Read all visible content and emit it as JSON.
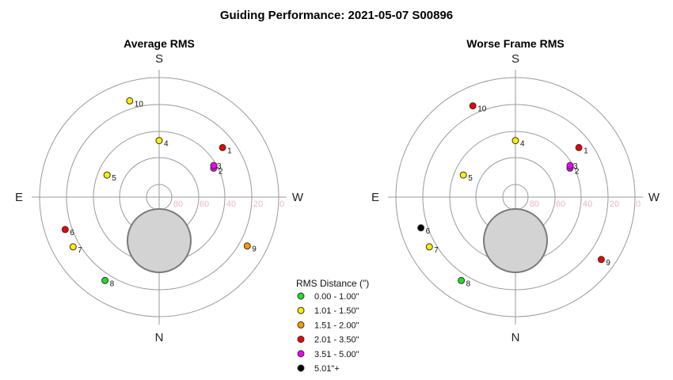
{
  "chart_data": {
    "type": "scatter",
    "title": "Guiding Performance: 2021-05-07  S00896",
    "coordinate_system": "polar (azimuth / altitude)",
    "directions": {
      "top": "S",
      "bottom": "N",
      "left": "E",
      "right": "W"
    },
    "ring_labels": [
      "80",
      "60",
      "40",
      "20",
      "0"
    ],
    "altitude_rings": [
      80,
      60,
      40,
      20,
      0
    ],
    "zenith_exclusion_altitude": 75,
    "legend": {
      "title": "RMS Distance (\")",
      "entries": [
        {
          "label": "0.00 - 1.00\"",
          "color": "#22dd22"
        },
        {
          "label": "1.01 - 1.50\"",
          "color": "#ffee00"
        },
        {
          "label": "1.51 - 2.00\"",
          "color": "#ff9900"
        },
        {
          "label": "2.01 - 3.50\"",
          "color": "#ee0000"
        },
        {
          "label": "3.51 - 5.00\"",
          "color": "#ee00ee"
        },
        {
          "label": "5.01\"+",
          "color": "#000000"
        }
      ]
    },
    "panels": [
      {
        "title": "Average RMS",
        "points": [
          {
            "label": "1",
            "az": 232,
            "alt": 49,
            "color": "#ee0000"
          },
          {
            "label": "2",
            "az": 242,
            "alt": 63,
            "color": "#ee00ee"
          },
          {
            "label": "3",
            "az": 240,
            "alt": 62,
            "color": "#ee00ee"
          },
          {
            "label": "4",
            "az": 180,
            "alt": 67,
            "color": "#ffee00"
          },
          {
            "label": "5",
            "az": 113,
            "alt": 67,
            "color": "#ffee00"
          },
          {
            "label": "6",
            "az": 71,
            "alt": 35,
            "color": "#ee0000"
          },
          {
            "label": "7",
            "az": 60,
            "alt": 35,
            "color": "#ffee00"
          },
          {
            "label": "8",
            "az": 33,
            "alt": 35,
            "color": "#22dd22"
          },
          {
            "label": "9",
            "az": 299,
            "alt": 34,
            "color": "#ff9900"
          },
          {
            "label": "10",
            "az": 163,
            "alt": 34,
            "color": "#ffee00"
          }
        ]
      },
      {
        "title": "Worse Frame RMS",
        "points": [
          {
            "label": "1",
            "az": 232,
            "alt": 49,
            "color": "#ee0000"
          },
          {
            "label": "2",
            "az": 242,
            "alt": 63,
            "color": "#ee00ee"
          },
          {
            "label": "3",
            "az": 240,
            "alt": 62,
            "color": "#ee00ee"
          },
          {
            "label": "4",
            "az": 180,
            "alt": 67,
            "color": "#ffee00"
          },
          {
            "label": "5",
            "az": 113,
            "alt": 67,
            "color": "#ffee00"
          },
          {
            "label": "6",
            "az": 72,
            "alt": 35,
            "color": "#000000"
          },
          {
            "label": "7",
            "az": 60,
            "alt": 35,
            "color": "#ffee00"
          },
          {
            "label": "8",
            "az": 33,
            "alt": 35,
            "color": "#22dd22"
          },
          {
            "label": "9",
            "az": 306,
            "alt": 30,
            "color": "#ee0000"
          },
          {
            "label": "10",
            "az": 155,
            "alt": 34,
            "color": "#ee0000"
          }
        ]
      }
    ]
  }
}
